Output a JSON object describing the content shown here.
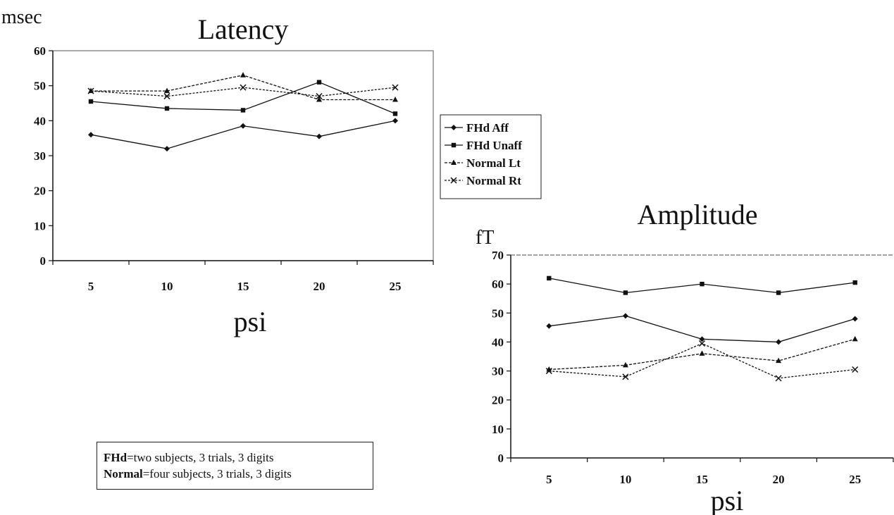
{
  "chart_data": [
    {
      "type": "line",
      "title": "Latency",
      "ylabel": "msec",
      "xlabel": "psi",
      "categories": [
        "5",
        "10",
        "15",
        "20",
        "25"
      ],
      "ylim": [
        0,
        60
      ],
      "yticks": [
        0,
        10,
        20,
        30,
        40,
        50,
        60
      ],
      "series": [
        {
          "name": "FHd Aff",
          "marker": "diamond",
          "values": [
            36,
            32,
            38.5,
            35.5,
            40
          ]
        },
        {
          "name": "FHd Unaff",
          "marker": "square",
          "values": [
            45.5,
            43.5,
            43,
            51,
            42
          ]
        },
        {
          "name": "Normal Lt",
          "marker": "triangle",
          "values": [
            48.5,
            48.5,
            53,
            46,
            46
          ]
        },
        {
          "name": "Normal Rt",
          "marker": "x",
          "values": [
            48.5,
            47,
            49.5,
            47,
            49.5
          ]
        }
      ],
      "legend": "right"
    },
    {
      "type": "line",
      "title": "Amplitude",
      "ylabel": "fT",
      "xlabel": "psi",
      "categories": [
        "5",
        "10",
        "15",
        "20",
        "25"
      ],
      "ylim": [
        0,
        70
      ],
      "yticks": [
        0,
        10,
        20,
        30,
        40,
        50,
        60,
        70
      ],
      "series": [
        {
          "name": "FHd Aff",
          "marker": "diamond",
          "values": [
            45.5,
            49,
            41,
            40,
            48
          ]
        },
        {
          "name": "FHd Unaff",
          "marker": "square",
          "values": [
            62,
            57,
            60,
            57,
            60.5
          ]
        },
        {
          "name": "Normal Lt",
          "marker": "triangle",
          "values": [
            30.5,
            32,
            36,
            33.5,
            41
          ]
        },
        {
          "name": "Normal Rt",
          "marker": "x",
          "values": [
            30,
            28,
            39.5,
            27.5,
            30.5
          ]
        }
      ]
    }
  ],
  "note": {
    "line1_bold": "FHd",
    "line1_rest": "=two subjects, 3 trials, 3 digits",
    "line2_bold": "Normal",
    "line2_rest": "=four subjects, 3 trials, 3 digits"
  }
}
